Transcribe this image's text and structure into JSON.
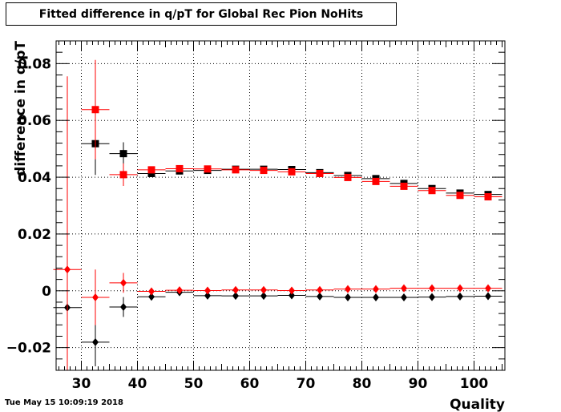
{
  "title": "Fitted difference in q/pT for Global Rec Pion NoHits",
  "timestamp": "Tue May 15 10:09:19 2018",
  "chart_data": {
    "type": "scatter",
    "xlabel": "Quality",
    "ylabel": "difference in q/pT",
    "xlim": [
      25.5,
      105.5
    ],
    "ylim": [
      -0.028,
      0.088
    ],
    "xticks": [
      "30",
      "40",
      "50",
      "60",
      "70",
      "80",
      "90",
      "100"
    ],
    "yticks": [
      "−0.02",
      "0",
      "0.02",
      "0.04",
      "0.06",
      "0.08"
    ],
    "grid": true,
    "bin_width": 5,
    "series": [
      {
        "marker": "square",
        "color": "#000000",
        "points": [
          {
            "x": 32.5,
            "y": 0.0518,
            "err": 0.011
          },
          {
            "x": 37.5,
            "y": 0.0483,
            "err": 0.004
          },
          {
            "x": 42.5,
            "y": 0.0413,
            "err": 0.0012
          },
          {
            "x": 47.5,
            "y": 0.0422,
            "err": 0.0008
          },
          {
            "x": 52.5,
            "y": 0.0424,
            "err": 0.0006
          },
          {
            "x": 57.5,
            "y": 0.0428,
            "err": 0.0005
          },
          {
            "x": 62.5,
            "y": 0.0428,
            "err": 0.0005
          },
          {
            "x": 67.5,
            "y": 0.0427,
            "err": 0.0005
          },
          {
            "x": 72.5,
            "y": 0.0416,
            "err": 0.0005
          },
          {
            "x": 77.5,
            "y": 0.0406,
            "err": 0.0005
          },
          {
            "x": 82.5,
            "y": 0.0395,
            "err": 0.0005
          },
          {
            "x": 87.5,
            "y": 0.0378,
            "err": 0.0005
          },
          {
            "x": 92.5,
            "y": 0.036,
            "err": 0.0005
          },
          {
            "x": 97.5,
            "y": 0.0344,
            "err": 0.0005
          },
          {
            "x": 102.5,
            "y": 0.0339,
            "err": 0.0005
          }
        ]
      },
      {
        "marker": "square",
        "color": "#ff0000",
        "points": [
          {
            "x": 32.5,
            "y": 0.0638,
            "err": 0.0175
          },
          {
            "x": 37.5,
            "y": 0.0409,
            "err": 0.004
          },
          {
            "x": 42.5,
            "y": 0.0426,
            "err": 0.0012
          },
          {
            "x": 47.5,
            "y": 0.043,
            "err": 0.0008
          },
          {
            "x": 52.5,
            "y": 0.0429,
            "err": 0.0006
          },
          {
            "x": 57.5,
            "y": 0.0426,
            "err": 0.0005
          },
          {
            "x": 62.5,
            "y": 0.0424,
            "err": 0.0005
          },
          {
            "x": 67.5,
            "y": 0.0419,
            "err": 0.0005
          },
          {
            "x": 72.5,
            "y": 0.0413,
            "err": 0.0005
          },
          {
            "x": 77.5,
            "y": 0.0399,
            "err": 0.0005
          },
          {
            "x": 82.5,
            "y": 0.0385,
            "err": 0.0005
          },
          {
            "x": 87.5,
            "y": 0.0368,
            "err": 0.0005
          },
          {
            "x": 92.5,
            "y": 0.0353,
            "err": 0.0005
          },
          {
            "x": 97.5,
            "y": 0.0336,
            "err": 0.0005
          },
          {
            "x": 102.5,
            "y": 0.0331,
            "err": 0.0005
          }
        ]
      },
      {
        "marker": "diamond",
        "color": "#000000",
        "points": [
          {
            "x": 27.5,
            "y": -0.0059,
            "err": 0.026
          },
          {
            "x": 32.5,
            "y": -0.0181,
            "err": 0.0085
          },
          {
            "x": 37.5,
            "y": -0.0057,
            "err": 0.0035
          },
          {
            "x": 42.5,
            "y": -0.0021,
            "err": 0.001
          },
          {
            "x": 47.5,
            "y": -0.0005,
            "err": 0.0007
          },
          {
            "x": 52.5,
            "y": -0.0017,
            "err": 0.0005
          },
          {
            "x": 57.5,
            "y": -0.0018,
            "err": 0.0004
          },
          {
            "x": 62.5,
            "y": -0.0018,
            "err": 0.0004
          },
          {
            "x": 67.5,
            "y": -0.0016,
            "err": 0.0004
          },
          {
            "x": 72.5,
            "y": -0.002,
            "err": 0.0004
          },
          {
            "x": 77.5,
            "y": -0.0023,
            "err": 0.0004
          },
          {
            "x": 82.5,
            "y": -0.0023,
            "err": 0.0004
          },
          {
            "x": 87.5,
            "y": -0.0023,
            "err": 0.0004
          },
          {
            "x": 92.5,
            "y": -0.0022,
            "err": 0.0004
          },
          {
            "x": 97.5,
            "y": -0.002,
            "err": 0.0004
          },
          {
            "x": 102.5,
            "y": -0.0019,
            "err": 0.0004
          }
        ]
      },
      {
        "marker": "diamond",
        "color": "#ff0000",
        "points": [
          {
            "x": 27.5,
            "y": 0.0075,
            "err": 0.068
          },
          {
            "x": 32.5,
            "y": -0.0023,
            "err": 0.0098
          },
          {
            "x": 37.5,
            "y": 0.0028,
            "err": 0.0035
          },
          {
            "x": 42.5,
            "y": -0.0002,
            "err": 0.001
          },
          {
            "x": 47.5,
            "y": 0.0002,
            "err": 0.0007
          },
          {
            "x": 52.5,
            "y": 0.0001,
            "err": 0.0005
          },
          {
            "x": 57.5,
            "y": 0.0003,
            "err": 0.0004
          },
          {
            "x": 62.5,
            "y": 0.0003,
            "err": 0.0004
          },
          {
            "x": 67.5,
            "y": 0.0001,
            "err": 0.0004
          },
          {
            "x": 72.5,
            "y": 0.0003,
            "err": 0.0004
          },
          {
            "x": 77.5,
            "y": 0.0006,
            "err": 0.0004
          },
          {
            "x": 82.5,
            "y": 0.0006,
            "err": 0.0004
          },
          {
            "x": 87.5,
            "y": 0.0009,
            "err": 0.0004
          },
          {
            "x": 92.5,
            "y": 0.0009,
            "err": 0.0004
          },
          {
            "x": 97.5,
            "y": 0.0009,
            "err": 0.0004
          },
          {
            "x": 102.5,
            "y": 0.0009,
            "err": 0.0004
          }
        ]
      }
    ]
  }
}
